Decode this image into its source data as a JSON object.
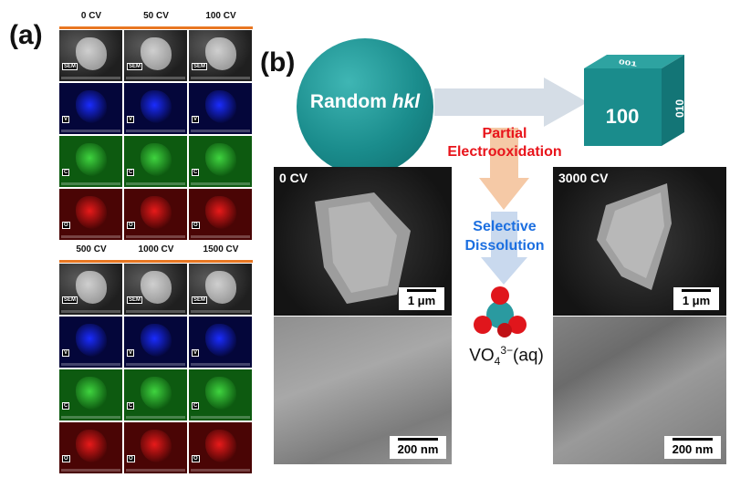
{
  "panel_a": {
    "label": "(a)",
    "top_columns": [
      "0 CV",
      "50 CV",
      "100 CV"
    ],
    "bottom_columns": [
      "500 CV",
      "1000 CV",
      "1500 CV"
    ],
    "row_tags": [
      "SEM",
      "V",
      "C",
      "O"
    ],
    "row_colors": {
      "V": "#1a2cff",
      "C": "#3fd43f",
      "O": "#e81a1a"
    }
  },
  "panel_b": {
    "label": "(b)",
    "sphere_label_prefix": "Random ",
    "sphere_label_italic": "hkl",
    "cube_face_front": "100",
    "cube_face_top": "001",
    "cube_face_side": "010",
    "process_step1": [
      "Partial",
      "Electrooxidation"
    ],
    "process_step2": [
      "Selective",
      "Dissolution"
    ],
    "product": {
      "base": "VO",
      "sub": "4",
      "sup": "3−",
      "suffix": "(aq)"
    },
    "micrographs": {
      "left_top": {
        "label": "0 CV",
        "scale": "1 μm"
      },
      "left_bottom": {
        "scale": "200 nm"
      },
      "right_top": {
        "label": "3000 CV",
        "scale": "1 μm"
      },
      "right_bottom": {
        "scale": "200 nm"
      }
    },
    "colors": {
      "teal": "#1a8c8c",
      "red": "#e8141b",
      "blue": "#1c6fe0",
      "arrow": "#d5dde6",
      "arrow_pink": "#f5c9a6"
    }
  }
}
